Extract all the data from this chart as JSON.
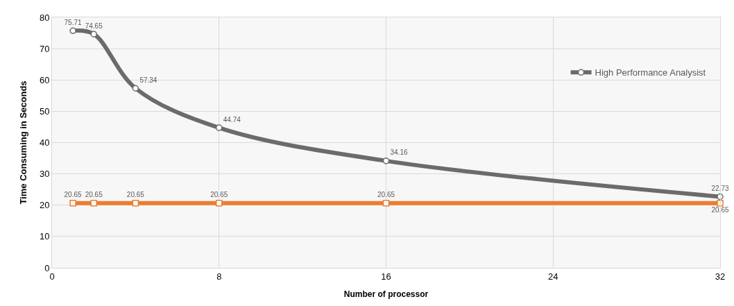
{
  "chart_data": {
    "type": "line",
    "xlabel": "Number of processor",
    "ylabel": "Time Consuming in Seconds",
    "x": [
      1,
      2,
      4,
      8,
      16,
      32
    ],
    "series": [
      {
        "name": "High Performance Analysist",
        "color": "#6b6b6b",
        "marker": "circle",
        "values": [
          75.71,
          74.65,
          57.34,
          44.74,
          34.16,
          22.73
        ]
      },
      {
        "color": "#ed7d31",
        "marker": "square",
        "values": [
          20.65,
          20.65,
          20.65,
          20.65,
          20.65,
          20.65
        ]
      }
    ],
    "xlim": [
      0,
      32
    ],
    "xticks": [
      0,
      8,
      16,
      24,
      32
    ],
    "ylim": [
      0,
      80
    ],
    "yticks": [
      0,
      10,
      20,
      30,
      40,
      50,
      60,
      70,
      80
    ],
    "grid": true,
    "legend": "right",
    "data_labels": true,
    "line_style": "solid"
  }
}
